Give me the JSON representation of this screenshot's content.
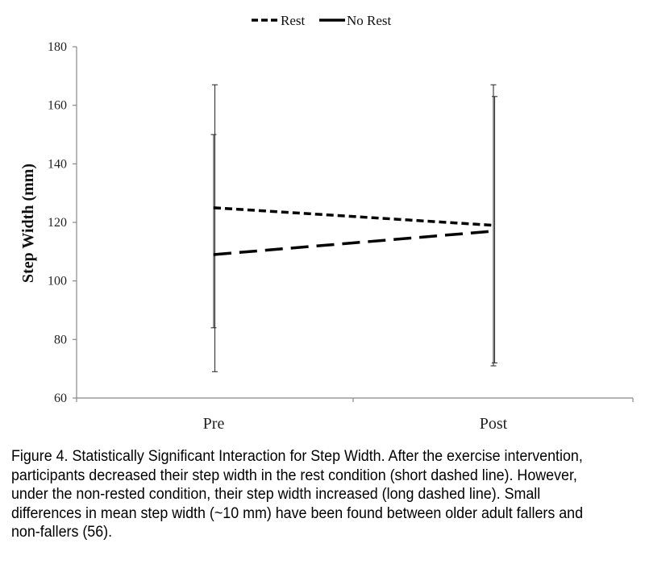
{
  "chart_data": {
    "type": "line",
    "categories": [
      "Pre",
      "Post"
    ],
    "ylabel": "Step Width (mm)",
    "xlabel": "",
    "ylim": [
      60,
      180
    ],
    "yticks": [
      60,
      80,
      100,
      120,
      140,
      160,
      180
    ],
    "grid": false,
    "legend": "top-center",
    "series": [
      {
        "name": "Rest",
        "values": [
          125,
          119
        ],
        "error_low": [
          84,
          71
        ],
        "error_high": [
          150,
          167
        ],
        "style": "short-dash",
        "color": "#000000"
      },
      {
        "name": "No Rest",
        "values": [
          109,
          117
        ],
        "error_low": [
          69,
          72
        ],
        "error_high": [
          167,
          163
        ],
        "style": "long-dash",
        "color": "#000000"
      }
    ]
  },
  "caption": "Figure 4. Statistically Significant Interaction for Step Width. After the exercise intervention, participants decreased their step width in the rest condition (short dashed line). However, under the non-rested condition, their step width increased (long dashed line). Small differences in mean step width (~10 mm) have been found between older adult fallers and non-fallers  (56)."
}
